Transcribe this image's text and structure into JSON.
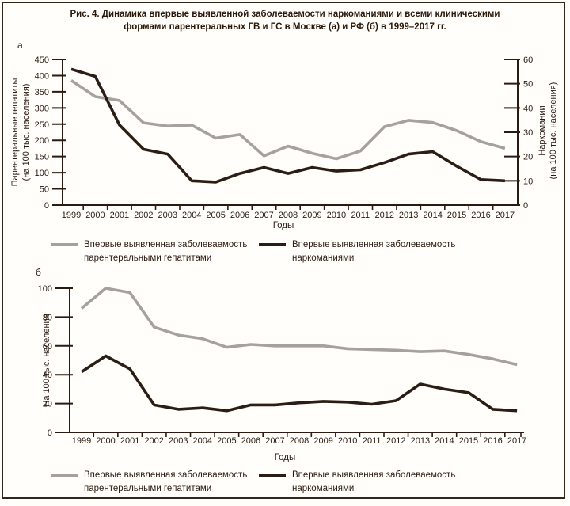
{
  "figure": {
    "title_line1": "Рис. 4. Динамика впервые выявленной заболеваемости наркоманиями и всеми клиническими",
    "title_line2": "формами парентеральных ГВ и ГС в Москве (а) и РФ (б) в 1999–2017 гг."
  },
  "colors": {
    "hepatitis": "#a5a29e",
    "narcotics": "#2b1d14",
    "text": "#2b1a10",
    "background": "#fffefb",
    "border": "#342519"
  },
  "legend": {
    "hepatitis_line1": "Впервые выявленная заболеваемость",
    "hepatitis_line2": "парентеральными гепатитами",
    "narcotics_line1": "Впервые выявленная заболеваемость",
    "narcotics_line2": "наркоманиями"
  },
  "chart_data": [
    {
      "id": "a",
      "panel_label": "а",
      "type": "line",
      "grid": false,
      "legend_position": "below",
      "categories": [
        "1999",
        "2000",
        "2001",
        "2002",
        "2003",
        "2004",
        "2005",
        "2006",
        "2007",
        "2008",
        "2009",
        "2010",
        "2011",
        "2012",
        "2013",
        "2014",
        "2015",
        "2016",
        "2017"
      ],
      "xlabel": "Годы",
      "left_axis": {
        "label_line1": "Парентеральные гепатиты",
        "label_line2": "(на 100 тыс. населения)",
        "range": [
          0,
          450
        ],
        "ticks": [
          0,
          50,
          100,
          150,
          200,
          250,
          300,
          350,
          400,
          450
        ]
      },
      "right_axis": {
        "label_line1": "Наркомании",
        "label_line2": "(на 100 тыс. населения)",
        "range": [
          0,
          60
        ],
        "ticks": [
          0,
          10,
          20,
          30,
          40,
          50,
          60
        ]
      },
      "series": [
        {
          "name": "Впервые выявленная заболеваемость парентеральными гепатитами",
          "axis": "left",
          "color": "hepatitis",
          "values": [
            385,
            335,
            323,
            254,
            244,
            247,
            207,
            218,
            152,
            182,
            160,
            143,
            167,
            242,
            262,
            255,
            230,
            196,
            175
          ]
        },
        {
          "name": "Впервые выявленная заболеваемость наркоманиями",
          "axis": "right",
          "color": "narcotics",
          "values": [
            56,
            53,
            33,
            23,
            21,
            10,
            9.5,
            13,
            15.5,
            13,
            15.5,
            14,
            14.5,
            17.5,
            21,
            22,
            16,
            10.5,
            10
          ]
        }
      ]
    },
    {
      "id": "b",
      "panel_label": "б",
      "type": "line",
      "grid": false,
      "legend_position": "below",
      "categories": [
        "1999",
        "2000",
        "2001",
        "2002",
        "2003",
        "2004",
        "2005",
        "2006",
        "2007",
        "2008",
        "2009",
        "2010",
        "2011",
        "2012",
        "2013",
        "2014",
        "2015",
        "2016",
        "2017"
      ],
      "xlabel": "Годы",
      "left_axis": {
        "label_line1": "На 100 тыс. населения",
        "label_line2": "",
        "range": [
          0,
          100
        ],
        "ticks": [
          0,
          20,
          40,
          60,
          80,
          100
        ]
      },
      "series": [
        {
          "name": "Впервые выявленная заболеваемость парентеральными гепатитами",
          "axis": "left",
          "color": "hepatitis",
          "values": [
            86,
            100,
            97,
            73,
            67.5,
            65,
            59,
            61,
            60,
            60,
            60,
            58,
            57.5,
            57,
            56,
            56.5,
            54,
            51,
            47
          ]
        },
        {
          "name": "Впервые выявленная заболеваемость наркоманиями",
          "axis": "left",
          "color": "narcotics",
          "values": [
            42,
            53,
            44,
            19,
            16,
            17,
            15,
            19,
            19,
            20.5,
            21.5,
            21,
            19.5,
            22,
            33.5,
            30,
            27.5,
            16,
            15
          ]
        }
      ]
    }
  ]
}
